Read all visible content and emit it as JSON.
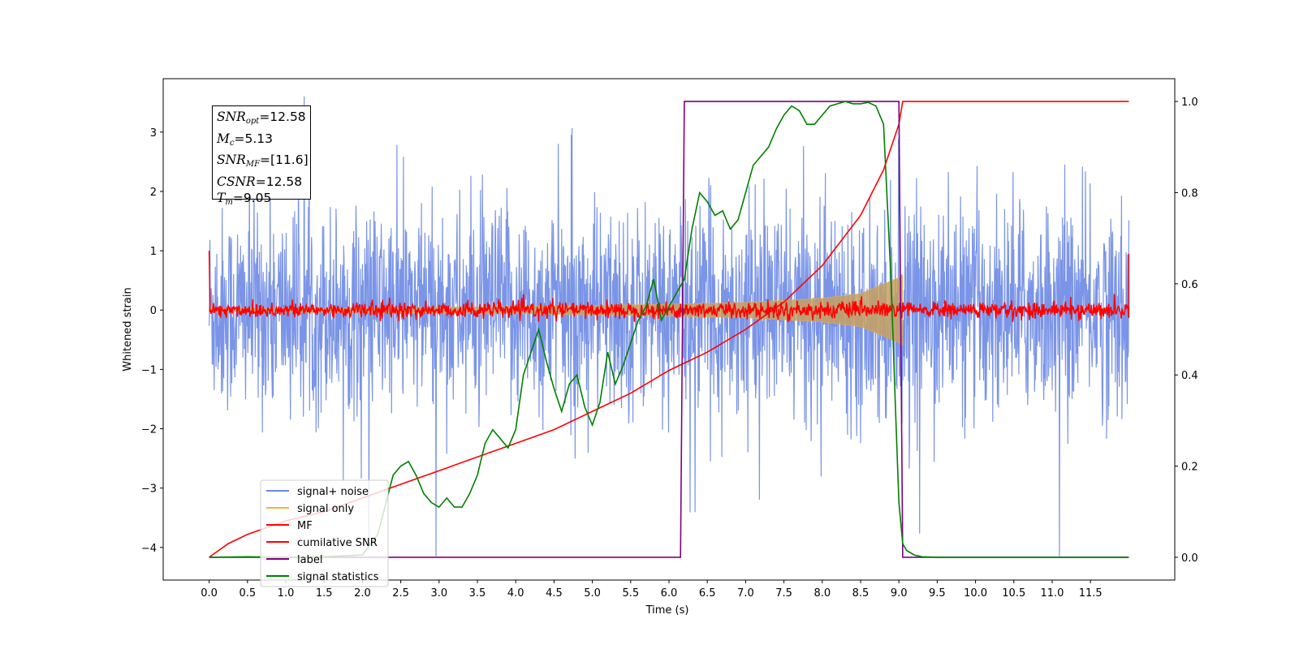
{
  "chart_data": {
    "type": "line",
    "xlabel": "Time (s)",
    "ylabel": "Whitened strain",
    "xlim": [
      -0.6,
      12.6
    ],
    "ylim": [
      -4.55,
      3.9
    ],
    "ylim_right": [
      -0.05,
      1.05
    ],
    "x_ticks": [
      "0.0",
      "0.5",
      "1.0",
      "1.5",
      "2.0",
      "2.5",
      "3.0",
      "3.5",
      "4.0",
      "4.5",
      "5.0",
      "5.5",
      "6.0",
      "6.5",
      "7.0",
      "7.5",
      "8.0",
      "8.5",
      "9.0",
      "9.5",
      "10.0",
      "10.5",
      "11.0",
      "11.5"
    ],
    "y_ticks_left": [
      "3",
      "2",
      "1",
      "0",
      "−1",
      "−2",
      "−3",
      "−4"
    ],
    "y_ticks_right": [
      "1.0",
      "0.8",
      "0.6",
      "0.4",
      "0.2",
      "0.0"
    ],
    "legend_position": "lower-left",
    "annotation": {
      "snr_opt": "=12.58",
      "mc": "=5.13",
      "snr_mf": "=[11.6]",
      "csnr": "=12.58",
      "tm": "=9.05"
    },
    "series": [
      {
        "name": "signal+ noise",
        "color": "#6b88e4",
        "axis": "left",
        "description": "noise band approx mean 0, std 0.9, spikes to about ±3.5 over t 0–12"
      },
      {
        "name": "signal only",
        "color": "#f5b041",
        "axis": "left",
        "chirp_envelope": {
          "x": [
            0,
            2,
            4,
            6,
            7,
            8,
            8.5,
            9.0,
            9.05
          ],
          "y": [
            0.03,
            0.04,
            0.06,
            0.1,
            0.13,
            0.2,
            0.28,
            0.55,
            0.6
          ]
        }
      },
      {
        "name": "MF",
        "color": "#ff0000",
        "axis": "left",
        "description": "noise around 0 with amplitude approx 0.15, start and end value 1.0"
      },
      {
        "name": "cumilative SNR",
        "color": "#ff0000",
        "axis": "right",
        "x": [
          0,
          0.25,
          0.5,
          1,
          1.5,
          2,
          2.5,
          3,
          3.5,
          4,
          4.5,
          5,
          5.5,
          6,
          6.5,
          7,
          7.5,
          8,
          8.5,
          8.8,
          9.0,
          9.05,
          12
        ],
        "y": [
          0.0,
          0.03,
          0.05,
          0.08,
          0.1,
          0.13,
          0.16,
          0.19,
          0.22,
          0.25,
          0.28,
          0.32,
          0.36,
          0.41,
          0.45,
          0.5,
          0.56,
          0.64,
          0.75,
          0.85,
          0.95,
          1.0,
          1.0
        ]
      },
      {
        "name": "label",
        "color": "#800080",
        "axis": "right",
        "x": [
          0,
          6.15,
          6.2,
          9.0,
          9.05,
          12
        ],
        "y": [
          0,
          0,
          1,
          1,
          0,
          0
        ]
      },
      {
        "name": "signal statistics",
        "color": "#008000",
        "axis": "right",
        "x": [
          0,
          0.5,
          1,
          1.5,
          2,
          2.2,
          2.4,
          2.5,
          2.6,
          2.7,
          2.8,
          2.9,
          3.0,
          3.1,
          3.2,
          3.3,
          3.4,
          3.5,
          3.6,
          3.7,
          3.8,
          3.9,
          4.0,
          4.1,
          4.2,
          4.3,
          4.4,
          4.5,
          4.6,
          4.7,
          4.8,
          4.9,
          5.0,
          5.1,
          5.2,
          5.3,
          5.4,
          5.5,
          5.6,
          5.7,
          5.8,
          5.9,
          6.0,
          6.1,
          6.2,
          6.3,
          6.4,
          6.5,
          6.6,
          6.7,
          6.8,
          6.9,
          7.0,
          7.1,
          7.2,
          7.3,
          7.4,
          7.5,
          7.6,
          7.7,
          7.8,
          7.9,
          8.0,
          8.1,
          8.2,
          8.3,
          8.4,
          8.5,
          8.6,
          8.7,
          8.8,
          8.9,
          8.95,
          9.0,
          9.05,
          9.1,
          9.2,
          9.3,
          9.5,
          10,
          11,
          12
        ],
        "y": [
          0.0,
          0.001,
          0.0,
          0.001,
          0.005,
          0.05,
          0.18,
          0.2,
          0.21,
          0.18,
          0.14,
          0.12,
          0.11,
          0.13,
          0.11,
          0.11,
          0.14,
          0.18,
          0.25,
          0.28,
          0.26,
          0.24,
          0.28,
          0.4,
          0.45,
          0.5,
          0.43,
          0.37,
          0.32,
          0.38,
          0.4,
          0.33,
          0.29,
          0.34,
          0.45,
          0.38,
          0.42,
          0.47,
          0.52,
          0.55,
          0.61,
          0.52,
          0.55,
          0.58,
          0.61,
          0.72,
          0.8,
          0.78,
          0.75,
          0.76,
          0.72,
          0.74,
          0.8,
          0.86,
          0.88,
          0.9,
          0.94,
          0.97,
          0.99,
          0.98,
          0.95,
          0.95,
          0.97,
          0.99,
          0.995,
          1.0,
          0.995,
          0.995,
          0.998,
          0.99,
          0.95,
          0.6,
          0.35,
          0.12,
          0.03,
          0.015,
          0.005,
          0.001,
          0.0,
          0.0,
          0.0,
          0.0
        ]
      }
    ]
  }
}
